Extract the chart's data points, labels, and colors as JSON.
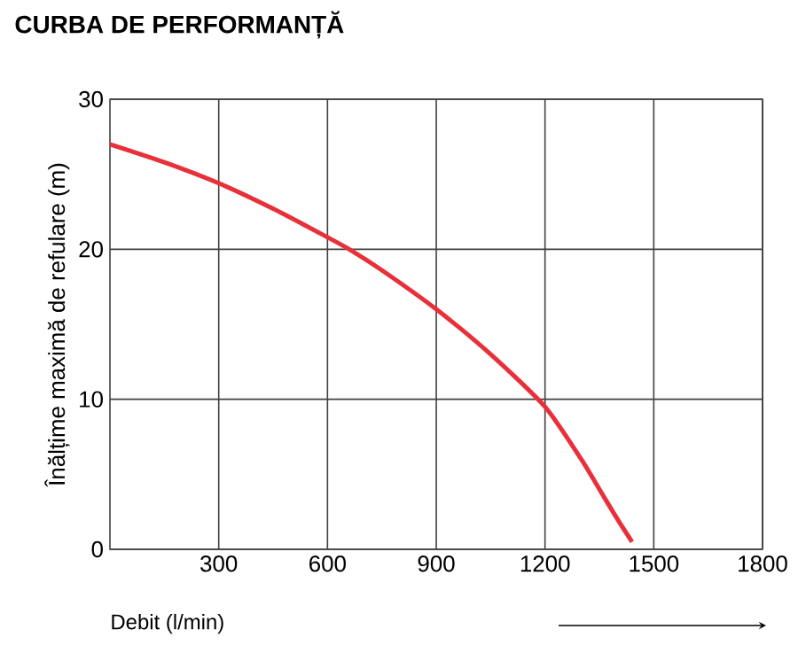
{
  "chart_data": {
    "type": "line",
    "title": "CURBA DE PERFORMANȚĂ",
    "xlabel": "Debit (l/min)",
    "ylabel": "Înălțime maximă de refulare (m)",
    "x": [
      0,
      150,
      300,
      450,
      600,
      660,
      750,
      900,
      1050,
      1200,
      1300,
      1350,
      1400,
      1440
    ],
    "series": [
      {
        "color": "#e8303a",
        "values": [
          27,
          25.8,
          24.4,
          22.7,
          20.8,
          20,
          18.6,
          16,
          13,
          9.5,
          6,
          4,
          2,
          0.5
        ]
      }
    ],
    "xlim": [
      0,
      1800
    ],
    "xticks": [
      300,
      600,
      900,
      1200,
      1500,
      1800
    ],
    "ylim": [
      0,
      30
    ],
    "yticks": [
      0,
      10,
      20,
      30
    ],
    "grid": true,
    "marker": "none",
    "line_style": "solid"
  }
}
